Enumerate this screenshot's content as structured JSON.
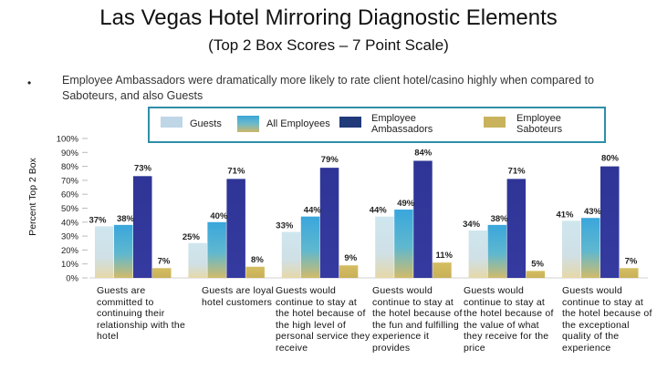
{
  "title": "Las Vegas Hotel Mirroring Diagnostic Elements",
  "subtitle": "(Top 2 Box Scores – 7 Point Scale)",
  "bullet": "•",
  "note": "Employee Ambassadors were dramatically more likely to rate client hotel/casino highly when compared to Saboteurs, and also Guests",
  "legend": {
    "guests": "Guests",
    "all_employees": "All Employees",
    "ambassadors": "Employee Ambassadors",
    "saboteurs": "Employee Saboteurs"
  },
  "colors": {
    "guests": "#cfe3ec",
    "all_employees": "#4ab0d8",
    "ambassadors": "#2f3596",
    "saboteurs": "#cfb85e",
    "legend_border": "#2e8fa8"
  },
  "chart_data": {
    "type": "bar",
    "title": "Las Vegas Hotel Mirroring Diagnostic Elements",
    "ylabel": "Percent Top 2 Box",
    "xlabel": "",
    "ylim": [
      0,
      100
    ],
    "yticks": [
      "0%",
      "10%",
      "20%",
      "30%",
      "40%",
      "50%",
      "60%",
      "70%",
      "80%",
      "90%",
      "100%"
    ],
    "categories": [
      "Guests are committed to continuing their relationship with the hotel",
      "Guests are loyal hotel customers",
      "Guests would continue to stay at the hotel because of the high level of personal service they receive",
      "Guests would continue to stay at the hotel because of the fun and fulfilling experience it provides",
      "Guests would continue to stay at the hotel because of the value of what they receive for the price",
      "Guests would continue to stay at the hotel because of the exceptional quality of the experience"
    ],
    "series": [
      {
        "name": "Guests",
        "values": [
          37,
          25,
          33,
          44,
          34,
          41
        ],
        "labels": [
          "37%",
          "25%",
          "33%",
          "44%",
          "34%",
          "41%"
        ]
      },
      {
        "name": "All Employees",
        "values": [
          38,
          40,
          44,
          49,
          38,
          43
        ],
        "labels": [
          "38%",
          "40%",
          "44%",
          "49%",
          "38%",
          "43%"
        ]
      },
      {
        "name": "Employee Ambassadors",
        "values": [
          73,
          71,
          79,
          84,
          71,
          80
        ],
        "labels": [
          "73%",
          "71%",
          "79%",
          "84%",
          "71%",
          "80%"
        ]
      },
      {
        "name": "Employee Saboteurs",
        "values": [
          7,
          8,
          9,
          11,
          5,
          7
        ],
        "labels": [
          "7%",
          "8%",
          "9%",
          "11%",
          "5%",
          "7%"
        ]
      }
    ]
  }
}
